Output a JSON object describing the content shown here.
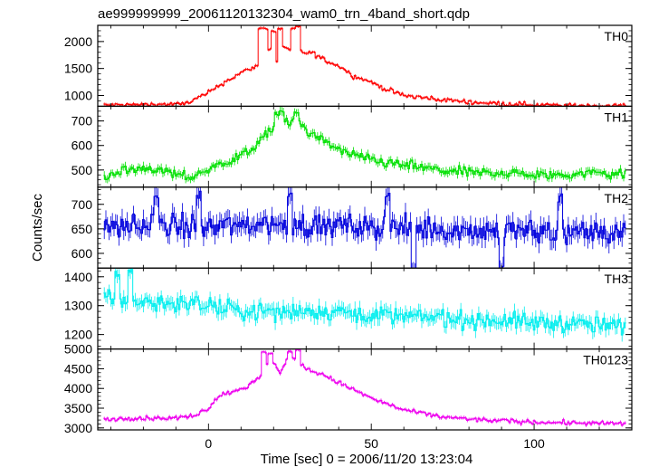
{
  "title": "ae999999999_20061120132304_wam0_trn_4band_short.qdp",
  "xlabel": "Time [sec] 0 = 2006/11/20 13:23:04",
  "ylabel": "Counts/sec",
  "chart_data": {
    "type": "line",
    "style": "step-with-error-bars",
    "xlim": [
      -34,
      130
    ],
    "x_ticks": [
      0,
      50,
      100
    ],
    "x_tick_labels": [
      "0",
      "50",
      "100"
    ],
    "bin_width": 0.5,
    "panels": [
      {
        "name": "TH0",
        "color": "#ff0000",
        "ylim": [
          800,
          2300
        ],
        "ticks": [
          1000,
          1500,
          2000
        ],
        "keypoints": [
          [
            -32,
            820
          ],
          [
            -20,
            830
          ],
          [
            -8,
            840
          ],
          [
            -5,
            900
          ],
          [
            0,
            1050
          ],
          [
            5,
            1250
          ],
          [
            10,
            1420
          ],
          [
            15,
            1550
          ],
          [
            17,
            1800
          ],
          [
            19,
            1850
          ],
          [
            21,
            1620
          ],
          [
            23,
            1900
          ],
          [
            25,
            1850
          ],
          [
            27,
            1900
          ],
          [
            29,
            1800
          ],
          [
            32,
            1780
          ],
          [
            36,
            1650
          ],
          [
            40,
            1550
          ],
          [
            45,
            1350
          ],
          [
            50,
            1250
          ],
          [
            55,
            1100
          ],
          [
            60,
            1000
          ],
          [
            70,
            930
          ],
          [
            80,
            880
          ],
          [
            90,
            850
          ],
          [
            100,
            830
          ],
          [
            110,
            810
          ],
          [
            128,
            810
          ]
        ],
        "noise": 40,
        "err": 25,
        "spikes": [
          [
            16,
            2250
          ],
          [
            17.5,
            2250
          ],
          [
            20,
            2200
          ],
          [
            22,
            2250
          ],
          [
            26,
            2250
          ],
          [
            27.5,
            2300
          ]
        ]
      },
      {
        "name": "TH1",
        "color": "#00e000",
        "ylim": [
          430,
          760
        ],
        "ticks": [
          500,
          600,
          700
        ],
        "keypoints": [
          [
            -32,
            470
          ],
          [
            -25,
            500
          ],
          [
            -20,
            510
          ],
          [
            -15,
            500
          ],
          [
            -10,
            480
          ],
          [
            -5,
            470
          ],
          [
            0,
            500
          ],
          [
            5,
            530
          ],
          [
            10,
            560
          ],
          [
            15,
            600
          ],
          [
            18,
            650
          ],
          [
            20,
            680
          ],
          [
            22,
            700
          ],
          [
            25,
            690
          ],
          [
            28,
            700
          ],
          [
            30,
            660
          ],
          [
            35,
            620
          ],
          [
            40,
            580
          ],
          [
            50,
            540
          ],
          [
            60,
            520
          ],
          [
            70,
            500
          ],
          [
            80,
            490
          ],
          [
            90,
            490
          ],
          [
            100,
            480
          ],
          [
            110,
            480
          ],
          [
            120,
            490
          ],
          [
            128,
            480
          ]
        ],
        "noise": 20,
        "err": 15,
        "spikes": [
          [
            21,
            735
          ],
          [
            22.5,
            750
          ],
          [
            27,
            740
          ]
        ]
      },
      {
        "name": "TH2",
        "color": "#0000dd",
        "ylim": [
          570,
          735
        ],
        "ticks": [
          600,
          650,
          700
        ],
        "keypoints": [
          [
            -32,
            655
          ],
          [
            0,
            655
          ],
          [
            20,
            660
          ],
          [
            40,
            655
          ],
          [
            60,
            650
          ],
          [
            80,
            648
          ],
          [
            100,
            645
          ],
          [
            128,
            640
          ]
        ],
        "noise": 25,
        "err": 18,
        "spikes": [
          [
            -16,
            730
          ],
          [
            -3,
            728
          ],
          [
            25,
            725
          ],
          [
            55,
            725
          ],
          [
            63,
            580
          ],
          [
            90,
            575
          ],
          [
            108,
            722
          ]
        ]
      },
      {
        "name": "TH3",
        "color": "#00eeee",
        "ylim": [
          1150,
          1430
        ],
        "ticks": [
          1200,
          1300,
          1400
        ],
        "keypoints": [
          [
            -32,
            1320
          ],
          [
            -20,
            1310
          ],
          [
            -10,
            1310
          ],
          [
            0,
            1300
          ],
          [
            10,
            1280
          ],
          [
            20,
            1280
          ],
          [
            30,
            1280
          ],
          [
            40,
            1280
          ],
          [
            50,
            1270
          ],
          [
            60,
            1260
          ],
          [
            70,
            1260
          ],
          [
            80,
            1250
          ],
          [
            90,
            1250
          ],
          [
            100,
            1240
          ],
          [
            110,
            1240
          ],
          [
            120,
            1230
          ],
          [
            128,
            1230
          ]
        ],
        "noise": 30,
        "err": 22,
        "spikes": [
          [
            -28,
            1420
          ],
          [
            -24,
            1430
          ]
        ]
      },
      {
        "name": "TH0123",
        "color": "#ee00ee",
        "ylim": [
          2950,
          5000
        ],
        "ticks": [
          3000,
          3500,
          4000,
          4500,
          5000
        ],
        "keypoints": [
          [
            -32,
            3200
          ],
          [
            -25,
            3250
          ],
          [
            -20,
            3250
          ],
          [
            -10,
            3250
          ],
          [
            -5,
            3300
          ],
          [
            0,
            3500
          ],
          [
            3,
            3800
          ],
          [
            8,
            3950
          ],
          [
            12,
            4050
          ],
          [
            16,
            4300
          ],
          [
            18,
            4600
          ],
          [
            20,
            4650
          ],
          [
            22,
            4400
          ],
          [
            24,
            4700
          ],
          [
            27,
            4750
          ],
          [
            30,
            4500
          ],
          [
            35,
            4350
          ],
          [
            40,
            4150
          ],
          [
            45,
            3950
          ],
          [
            50,
            3750
          ],
          [
            55,
            3600
          ],
          [
            60,
            3450
          ],
          [
            70,
            3300
          ],
          [
            80,
            3220
          ],
          [
            90,
            3180
          ],
          [
            100,
            3150
          ],
          [
            110,
            3130
          ],
          [
            128,
            3100
          ]
        ],
        "noise": 55,
        "err": 40,
        "spikes": [
          [
            17,
            4950
          ],
          [
            19,
            4900
          ],
          [
            25,
            4950
          ],
          [
            27.5,
            5000
          ]
        ]
      }
    ]
  }
}
